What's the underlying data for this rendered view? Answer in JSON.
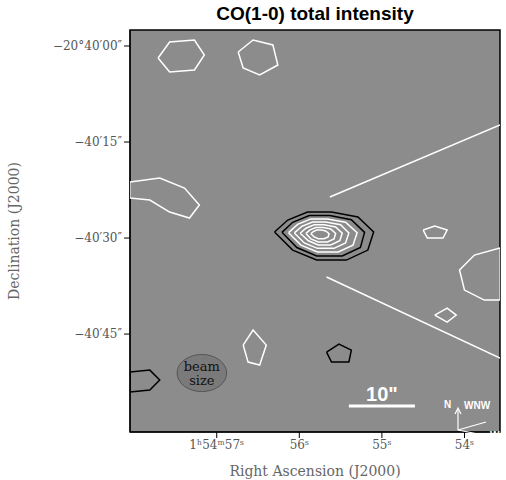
{
  "chart_data": {
    "type": "contour",
    "title": "CO(1-0) total intensity",
    "x_label": "Right Ascension (J2000)",
    "y_label": "Declination (J2000)",
    "xlim": [
      58.05,
      53.57
    ],
    "xticks": [
      {
        "value": 57,
        "label": "1ʰ54ᵐ57ˢ"
      },
      {
        "value": 56,
        "label": "56ˢ"
      },
      {
        "value": 55,
        "label": "55ˢ"
      },
      {
        "value": 54,
        "label": "54ˢ"
      }
    ],
    "ylim": [
      -60.3,
      2.5
    ],
    "yticks": [
      {
        "value": 0,
        "label": "−20°40′00″"
      },
      {
        "value": -15,
        "label": "−40′15″"
      },
      {
        "value": -30,
        "label": "−40′30″"
      },
      {
        "value": -45,
        "label": "−40′45″"
      }
    ],
    "grid": false,
    "contours": [
      {
        "color": "#000000",
        "x": [
          56.3,
          56.14,
          55.9,
          55.61,
          55.29,
          55.1,
          55.17,
          55.43,
          55.79,
          56.08
        ],
        "y": [
          -29.06,
          -27.19,
          -25.94,
          -25.94,
          -26.72,
          -29.06,
          -31.88,
          -33.44,
          -33.44,
          -31.88
        ]
      },
      {
        "color": "#000000",
        "x": [
          56.21,
          56.08,
          55.88,
          55.63,
          55.37,
          55.21,
          55.26,
          55.48,
          55.79,
          56.03
        ],
        "y": [
          -29.11,
          -27.54,
          -26.49,
          -26.49,
          -27.15,
          -29.11,
          -31.48,
          -32.79,
          -32.79,
          -31.48
        ]
      },
      {
        "color": "#ffffff",
        "x": [
          56.13,
          56.02,
          55.86,
          55.66,
          55.44,
          55.3,
          55.35,
          55.53,
          55.78,
          55.98
        ],
        "y": [
          -29.16,
          -27.87,
          -27.01,
          -27.01,
          -27.54,
          -29.16,
          -31.11,
          -32.18,
          -32.18,
          -31.11
        ]
      },
      {
        "color": "#ffffff",
        "x": [
          56.06,
          55.97,
          55.84,
          55.68,
          55.5,
          55.4,
          55.44,
          55.58,
          55.78,
          55.94
        ],
        "y": [
          -29.2,
          -28.18,
          -27.49,
          -27.49,
          -27.92,
          -29.2,
          -30.76,
          -31.61,
          -31.61,
          -30.76
        ]
      },
      {
        "color": "#ffffff",
        "x": [
          55.99,
          55.92,
          55.82,
          55.7,
          55.56,
          55.48,
          55.51,
          55.62,
          55.77,
          55.89
        ],
        "y": [
          -29.25,
          -28.46,
          -27.94,
          -27.94,
          -28.26,
          -29.25,
          -30.43,
          -31.09,
          -31.09,
          -30.43
        ]
      },
      {
        "color": "#ffffff",
        "x": [
          55.92,
          55.87,
          55.8,
          55.71,
          55.62,
          55.56,
          55.58,
          55.66,
          55.77,
          55.86
        ],
        "y": [
          -29.28,
          -28.72,
          -28.35,
          -28.35,
          -28.58,
          -29.28,
          -30.13,
          -30.6,
          -30.6,
          -30.13
        ]
      },
      {
        "color": "#ffffff",
        "x": [
          55.86,
          55.83,
          55.79,
          55.73,
          55.68,
          55.64,
          55.65,
          55.7,
          55.77,
          55.82
        ],
        "y": [
          -29.32,
          -28.99,
          -28.76,
          -28.76,
          -28.9,
          -29.32,
          -29.83,
          -30.11,
          -30.11,
          -29.83
        ]
      },
      {
        "color": "#ffffff",
        "x": [
          57.71,
          57.57,
          57.27,
          57.15,
          57.27,
          57.57
        ],
        "y": [
          -1.88,
          0.63,
          0.94,
          -1.41,
          -3.75,
          -4.06
        ]
      },
      {
        "color": "#ffffff",
        "x": [
          56.74,
          56.56,
          56.32,
          56.26,
          56.48,
          56.68
        ],
        "y": [
          -0.94,
          0.94,
          0.16,
          -2.97,
          -4.53,
          -3.44
        ]
      },
      {
        "color": "#ffffff",
        "x": [
          58.05,
          57.69,
          57.39,
          57.21,
          57.33,
          57.57,
          57.81,
          58.05
        ],
        "y": [
          -21.25,
          -20.63,
          -22.19,
          -24.84,
          -26.88,
          -25.94,
          -24.06,
          -23.75
        ]
      },
      {
        "color": "#ffffff",
        "x": [
          53.57,
          53.88,
          54.06,
          54.0,
          53.76,
          53.57
        ],
        "y": [
          -31.56,
          -32.66,
          -35.0,
          -38.13,
          -39.69,
          -39.69
        ]
      },
      {
        "color": "#ffffff",
        "x": [
          54.5,
          54.36,
          54.21,
          54.26,
          54.45
        ],
        "y": [
          -28.75,
          -28.13,
          -28.75,
          -30.0,
          -30.0
        ]
      },
      {
        "color": "#ffffff",
        "x": [
          54.36,
          54.21,
          54.1,
          54.21
        ],
        "y": [
          -42.03,
          -40.94,
          -42.03,
          -43.13
        ]
      },
      {
        "color": "#000000",
        "x": [
          55.67,
          55.52,
          55.37,
          55.4,
          55.61
        ],
        "y": [
          -47.81,
          -46.56,
          -47.5,
          -49.38,
          -49.38
        ]
      },
      {
        "color": "#ffffff",
        "x": [
          56.68,
          56.56,
          56.4,
          56.48,
          56.62
        ],
        "y": [
          -46.72,
          -44.38,
          -46.72,
          -49.84,
          -49.38
        ]
      },
      {
        "color": "#000000",
        "x": [
          58.05,
          57.81,
          57.69,
          57.81,
          58.05
        ],
        "y": [
          -50.94,
          -50.63,
          -52.19,
          -53.75,
          -54.06
        ]
      }
    ],
    "lines": [
      {
        "color": "#ffffff",
        "x": [
          55.63,
          53.57
        ],
        "y": [
          -23.59,
          -12.34
        ]
      },
      {
        "color": "#ffffff",
        "x": [
          55.67,
          53.57
        ],
        "y": [
          -36.09,
          -48.75
        ]
      }
    ],
    "beam": {
      "label": "beam size",
      "x": 57.18,
      "y": -51.09,
      "width": 0.6,
      "height": 5.8
    },
    "scale_bar": {
      "label": "10\"",
      "x": [
        55.4,
        54.6
      ],
      "y": -56.25
    },
    "compass": [
      "N",
      "WNW",
      "W"
    ]
  }
}
